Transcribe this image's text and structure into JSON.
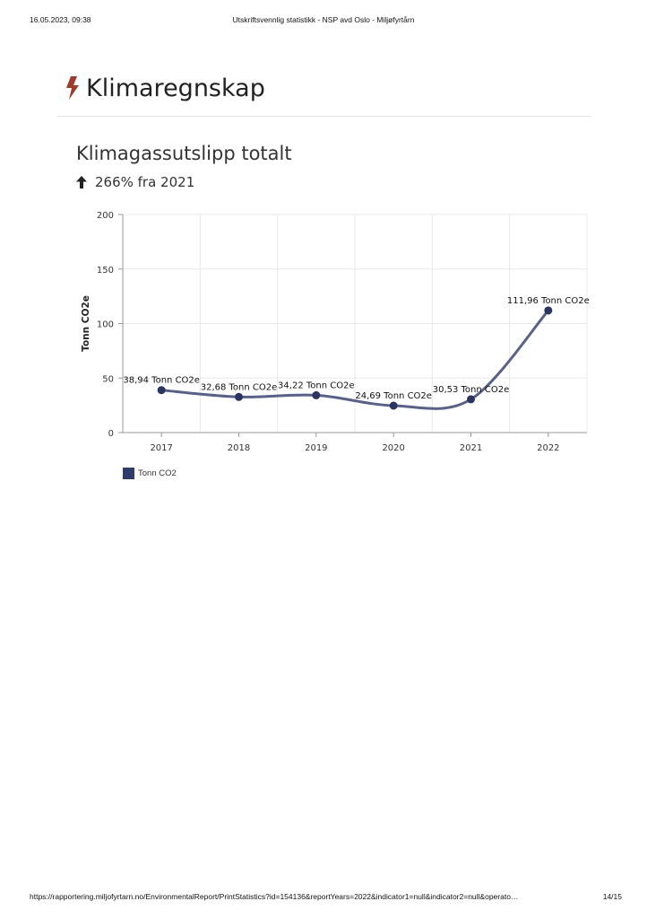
{
  "print_header": {
    "date": "16.05.2023, 09:38",
    "title": "Utskriftsvennlig statistikk - NSP avd Oslo - Miljøfyrtårn"
  },
  "section": {
    "title": "Klimaregnskap",
    "icon": "bolt-icon",
    "icon_color": "#9b3d2c"
  },
  "chart_header": {
    "title": "Klimagassutslipp totalt",
    "change_icon": "arrow-up-icon",
    "change_text": "266% fra 2021"
  },
  "chart_data": {
    "type": "line",
    "categories": [
      "2017",
      "2018",
      "2019",
      "2020",
      "2021",
      "2022"
    ],
    "series": [
      {
        "name": "Tonn CO2",
        "values": [
          38.94,
          32.68,
          34.22,
          24.69,
          30.53,
          111.96
        ],
        "data_labels": [
          "38,94 Tonn CO2e",
          "32,68 Tonn CO2e",
          "34,22 Tonn CO2e",
          "24,69 Tonn CO2e",
          "30,53 Tonn CO2e",
          "111,96 Tonn CO2e"
        ]
      }
    ],
    "ylabel": "Tonn CO2e",
    "xlabel": "",
    "ylim": [
      0,
      200
    ],
    "yticks": [
      0,
      50,
      100,
      150,
      200
    ],
    "grid": true,
    "legend_position": "bottom-left",
    "colors": {
      "line": "#5a6188",
      "marker": "#2b3560",
      "legend": "#2e3d6b",
      "grid": "#e8e8e8",
      "axis": "#999999"
    }
  },
  "print_footer": {
    "url": "https://rapportering.miljofyrtarn.no/EnvironmentalReport/PrintStatistics?id=154136&reportYears=2022&indicator1=null&indicator2=null&operato…",
    "pages": "14/15"
  }
}
